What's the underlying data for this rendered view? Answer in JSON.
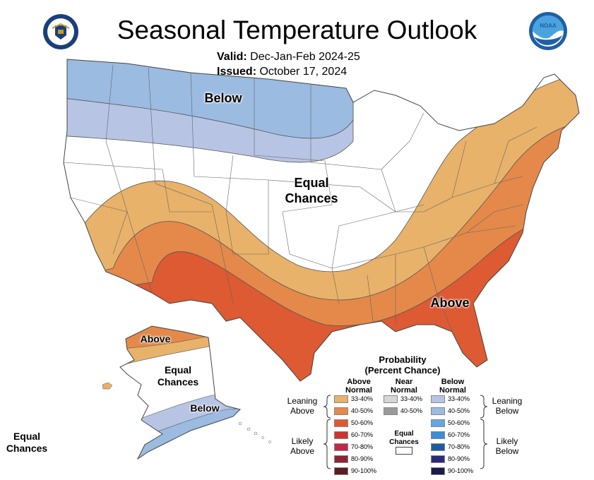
{
  "header": {
    "title": "Seasonal Temperature Outlook",
    "valid_label": "Valid:",
    "valid_value": "Dec-Jan-Feb 2024-25",
    "issued_label": "Issued:",
    "issued_value": "October 17, 2024"
  },
  "logos": {
    "left": "Department of Commerce seal",
    "right": "NOAA"
  },
  "map_labels": {
    "below": "Below",
    "equal_chances_line1": "Equal",
    "equal_chances_line2": "Chances",
    "above": "Above",
    "ak_above": "Above",
    "ak_equal_line1": "Equal",
    "ak_equal_line2": "Chances",
    "ak_below": "Below",
    "hi_equal_line1": "Equal",
    "hi_equal_line2": "Chances"
  },
  "legend": {
    "title_line1": "Probability",
    "title_line2": "(Percent Chance)",
    "col_above_line1": "Above",
    "col_above_line2": "Normal",
    "col_near_line1": "Near",
    "col_near_line2": "Normal",
    "col_below_line1": "Below",
    "col_below_line2": "Normal",
    "leaning_above_line1": "Leaning",
    "leaning_above_line2": "Above",
    "likely_above_line1": "Likely",
    "likely_above_line2": "Above",
    "leaning_below_line1": "Leaning",
    "leaning_below_line2": "Below",
    "likely_below_line1": "Likely",
    "likely_below_line2": "Below",
    "equal_chances_line1": "Equal",
    "equal_chances_line2": "Chances",
    "above": [
      {
        "range": "33-40%",
        "color": "#e8b26a"
      },
      {
        "range": "40-50%",
        "color": "#e4894a"
      },
      {
        "range": "50-60%",
        "color": "#dd5a32"
      },
      {
        "range": "60-70%",
        "color": "#cd3530"
      },
      {
        "range": "70-80%",
        "color": "#c02a47"
      },
      {
        "range": "80-90%",
        "color": "#8c2535"
      },
      {
        "range": "90-100%",
        "color": "#5a1d22"
      }
    ],
    "near": [
      {
        "range": "33-40%",
        "color": "#d6d6d6"
      },
      {
        "range": "40-50%",
        "color": "#9a9a9a"
      }
    ],
    "below": [
      {
        "range": "33-40%",
        "color": "#b8c4e4"
      },
      {
        "range": "40-50%",
        "color": "#9bbbe0"
      },
      {
        "range": "50-60%",
        "color": "#64a7e0"
      },
      {
        "range": "60-70%",
        "color": "#3c8cd6"
      },
      {
        "range": "70-80%",
        "color": "#1d5aa0"
      },
      {
        "range": "80-90%",
        "color": "#2b2a7a"
      },
      {
        "range": "90-100%",
        "color": "#1c1a4a"
      }
    ]
  }
}
